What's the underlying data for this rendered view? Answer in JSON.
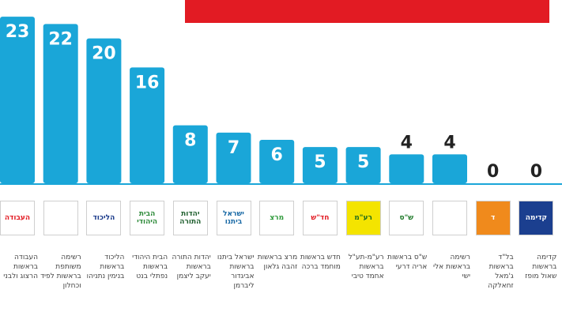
{
  "colors": {
    "bar": "#1aa6d8",
    "value_on_bar": "#ffffff",
    "value_above_bar": "#222222",
    "banner": "#e21b23",
    "baseline": "#1aa6d8"
  },
  "chart_data": {
    "type": "bar",
    "title": "",
    "xlabel": "",
    "ylabel": "",
    "ylim": [
      0,
      24
    ],
    "grid": false,
    "legend": "none",
    "categories": [
      "העבודה בראשות הרצוג ולבני",
      "רשימה משותפת בראשות לפיד וכחלון",
      "הליכוד בראשות בנימין נתניהו",
      "הבית היהודי בראשות נפתלי בנט",
      "יהדות התורה בראשות יעקב ליצמן",
      "ישראל ביתנו בראשות אביגדור ליברמן",
      "מרצ בראשות זהבה גלאון",
      "חדש בראשות מוחמד ברכה",
      "רע\"מ-תע\"ל בראשות אחמד טיבי",
      "ש\"ס בראשות אריה דרעי",
      "רשימה בראשות אלי ישי",
      "בל\"ד בראשות ג'מאל זחאלקה",
      "קדימה בראשות שאול מופז"
    ],
    "values": [
      23,
      22,
      20,
      16,
      8,
      7,
      6,
      5,
      5,
      4,
      4,
      0,
      0
    ]
  },
  "logos": [
    {
      "text": "העבודה",
      "bg": "#ffffff",
      "fg": "#e21b23"
    },
    {
      "text": "",
      "bg": "#ffffff",
      "fg": "#1a3a8a"
    },
    {
      "text": "הליכוד",
      "bg": "#ffffff",
      "fg": "#1a3a8a"
    },
    {
      "text": "הבית היהודי",
      "bg": "#ffffff",
      "fg": "#2e8b3a"
    },
    {
      "text": "יהדות התורה",
      "bg": "#ffffff",
      "fg": "#1f5f2e"
    },
    {
      "text": "ישראל ביתנו",
      "bg": "#ffffff",
      "fg": "#1a6aa6"
    },
    {
      "text": "מרצ",
      "bg": "#ffffff",
      "fg": "#2e9a3a"
    },
    {
      "text": "חד\"ש",
      "bg": "#ffffff",
      "fg": "#e21b23"
    },
    {
      "text": "רע\"מ",
      "bg": "#f4e400",
      "fg": "#1f6a1f"
    },
    {
      "text": "ש\"ס",
      "bg": "#ffffff",
      "fg": "#1f7a2a"
    },
    {
      "text": "",
      "bg": "#ffffff",
      "fg": "#1a3a8a"
    },
    {
      "text": "ד",
      "bg": "#f08a1c",
      "fg": "#ffffff"
    },
    {
      "text": "קדימה",
      "bg": "#1b3f8f",
      "fg": "#ffffff"
    }
  ]
}
